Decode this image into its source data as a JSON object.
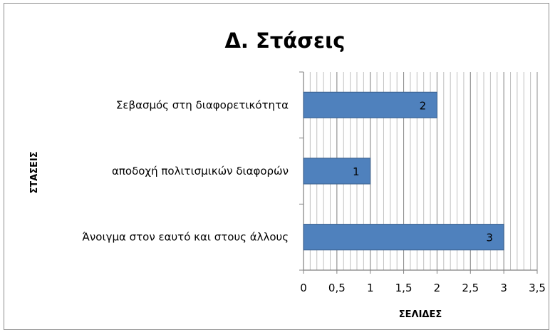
{
  "chart_data": {
    "type": "bar",
    "orientation": "horizontal",
    "title": "Δ. Στάσεις",
    "xlabel": "ΣΕΛΙΔΕΣ",
    "ylabel": "ΣΤΑΣΕΙΣ",
    "categories": [
      "Σεβασμός στη διαφορετικότητα",
      "αποδοχή πολιτισμικών διαφορών",
      "Άνοιγμα στον εαυτό και στους άλλους"
    ],
    "values": [
      2,
      1,
      3
    ],
    "data_labels": [
      "2",
      "1",
      "3"
    ],
    "xlim": [
      0,
      3.5
    ],
    "x_ticks": [
      0,
      0.5,
      1,
      1.5,
      2,
      2.5,
      3,
      3.5
    ],
    "x_tick_labels": [
      "0",
      "0,5",
      "1",
      "1,5",
      "2",
      "2,5",
      "3",
      "3,5"
    ],
    "grid": "on",
    "legend": "none",
    "bar_color": "#4f81bd",
    "bar_edge_color": "#385d8a"
  }
}
